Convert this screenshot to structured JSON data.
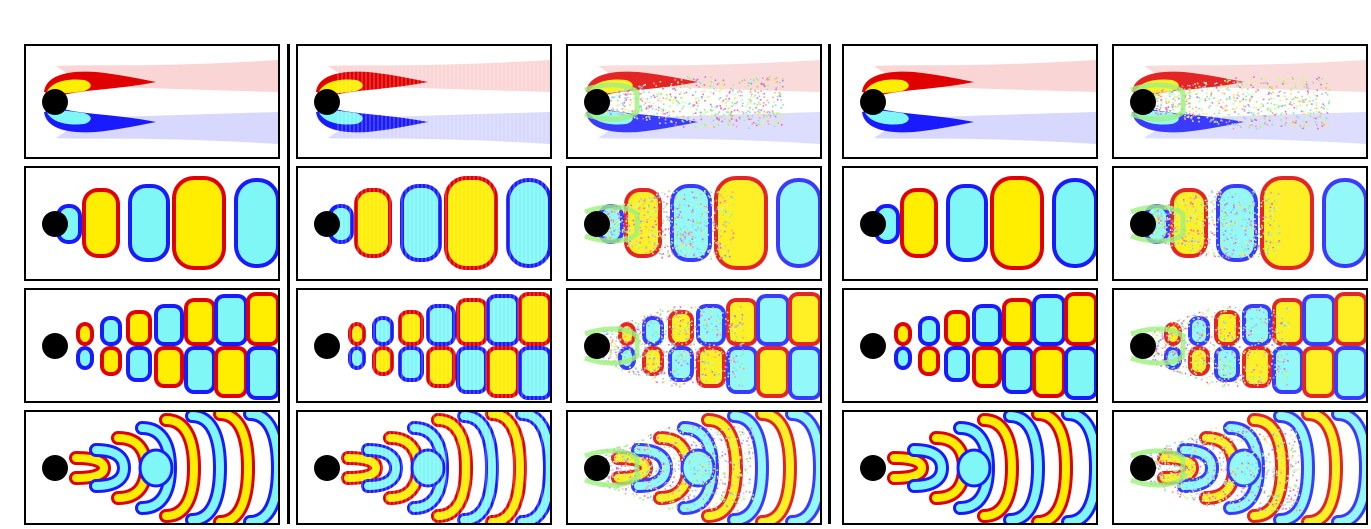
{
  "figure": {
    "columns": [
      "col-1",
      "col-2",
      "col-3",
      "col-4",
      "col-5"
    ],
    "rows": [
      "row-1",
      "row-2",
      "row-3",
      "row-4"
    ],
    "column_styles": [
      "smooth",
      "textured",
      "particles",
      "smooth",
      "particles"
    ],
    "colors": {
      "red": "#e00000",
      "red_light": "#f6c3c3",
      "yellow": "#ffee00",
      "cyan": "#7ff7f7",
      "blue": "#1a1aff",
      "blue_light": "#c8c8ff",
      "cylinder": "#000000",
      "particles": [
        "#9ef07e",
        "#f2e96b",
        "#d86be0",
        "#7fd8ff",
        "#ff9a9a",
        "#c0ffb0"
      ]
    }
  }
}
